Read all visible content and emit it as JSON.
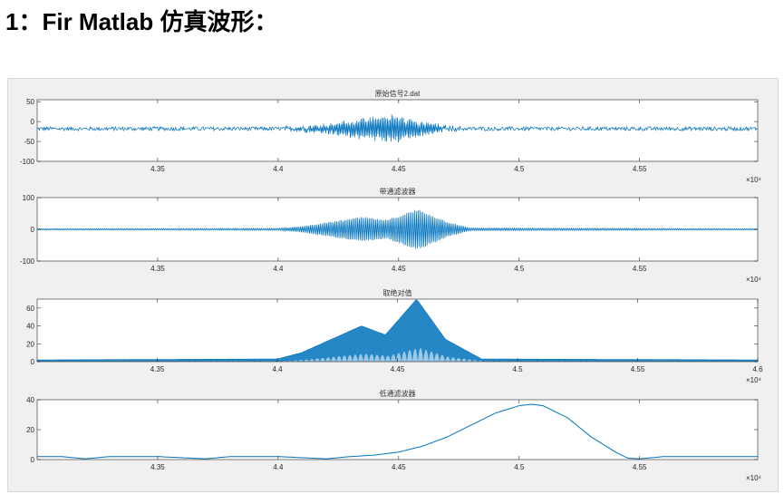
{
  "heading": "1：Fir Matlab 仿真波形：",
  "figure": {
    "background": "#f0f0f0",
    "line_color": "#0072bd"
  },
  "chart_data": [
    {
      "type": "line",
      "title": "原始信号2.dat",
      "xlim": [
        43000,
        45990
      ],
      "ylim": [
        -100,
        55
      ],
      "yticks": [
        -100,
        -50,
        0,
        50
      ],
      "xticks": [
        43500,
        44000,
        44500,
        45000,
        45500
      ],
      "xticklabels": [
        "4.35",
        "4.4",
        "4.45",
        "4.5",
        "4.55"
      ],
      "exponent": "×10⁴",
      "series": [
        {
          "kind": "noisy_burst",
          "baseline": -18,
          "noise": 5,
          "envelope": [
            [
              43000,
              0
            ],
            [
              44000,
              0
            ],
            [
              44150,
              8
            ],
            [
              44350,
              25
            ],
            [
              44480,
              35
            ],
            [
              44600,
              18
            ],
            [
              44700,
              5
            ],
            [
              44800,
              0
            ],
            [
              45990,
              0
            ]
          ]
        }
      ]
    },
    {
      "type": "line",
      "title": "带通滤波器",
      "xlim": [
        43000,
        45990
      ],
      "ylim": [
        -100,
        100
      ],
      "yticks": [
        -100,
        0,
        100
      ],
      "xticks": [
        43500,
        44000,
        44500,
        45000,
        45500
      ],
      "xticklabels": [
        "4.35",
        "4.4",
        "4.45",
        "4.5",
        "4.55"
      ],
      "exponent": "×10⁴",
      "series": [
        {
          "kind": "oscillation",
          "baseline": 0,
          "envelope": [
            [
              43000,
              2
            ],
            [
              44000,
              3
            ],
            [
              44100,
              10
            ],
            [
              44350,
              40
            ],
            [
              44450,
              30
            ],
            [
              44580,
              65
            ],
            [
              44700,
              25
            ],
            [
              44800,
              4
            ],
            [
              45990,
              2
            ]
          ]
        }
      ]
    },
    {
      "type": "area",
      "title": "取绝对值",
      "xlim": [
        43000,
        46000
      ],
      "ylim": [
        0,
        70
      ],
      "yticks": [
        0,
        20,
        40,
        60
      ],
      "xticks": [
        43500,
        44000,
        44500,
        45000,
        45500,
        46000
      ],
      "xticklabels": [
        "4.35",
        "4.4",
        "4.45",
        "4.5",
        "4.55",
        "4.6"
      ],
      "exponent": "×10⁴",
      "series": [
        {
          "kind": "rectified",
          "envelope": [
            [
              43000,
              2
            ],
            [
              44000,
              3
            ],
            [
              44100,
              10
            ],
            [
              44350,
              40
            ],
            [
              44450,
              30
            ],
            [
              44580,
              70
            ],
            [
              44700,
              25
            ],
            [
              44850,
              3
            ],
            [
              46000,
              2
            ]
          ]
        }
      ]
    },
    {
      "type": "line",
      "title": "低通滤波器",
      "xlim": [
        43000,
        45990
      ],
      "ylim": [
        0,
        40
      ],
      "yticks": [
        0,
        20,
        40
      ],
      "xticks": [
        43500,
        44000,
        44500,
        45000,
        45500
      ],
      "xticklabels": [
        "4.35",
        "4.4",
        "4.45",
        "4.5",
        "4.55"
      ],
      "exponent": "×10⁴",
      "series": [
        {
          "kind": "smooth",
          "x": [
            43000,
            43100,
            43200,
            43300,
            43500,
            43700,
            43800,
            44000,
            44200,
            44300,
            44400,
            44500,
            44600,
            44700,
            44800,
            44900,
            45000,
            45050,
            45100,
            45200,
            45300,
            45400,
            45450,
            45500,
            45600,
            45800,
            45990
          ],
          "y": [
            2,
            2,
            0.5,
            2,
            2,
            0.5,
            2,
            2,
            0.5,
            2,
            3,
            5,
            9,
            15,
            23,
            31,
            36,
            37,
            36,
            28,
            15,
            5,
            1,
            0.5,
            2,
            2,
            2
          ]
        }
      ]
    }
  ]
}
